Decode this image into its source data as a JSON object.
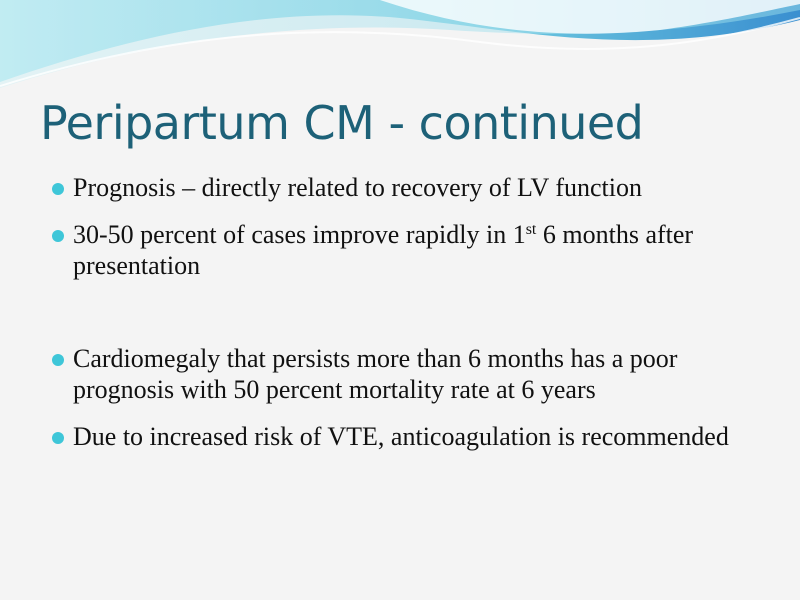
{
  "title": "Peripartum CM - continued",
  "bullets": [
    {
      "text": "Prognosis – directly related to recovery of LV function"
    },
    {
      "text": "30-50 percent of cases improve rapidly in 1",
      "superscript": "st",
      "text_after": " 6 months after presentation"
    },
    {
      "text": "Cardiomegaly that persists more than 6 months has a poor prognosis with 50 percent mortality rate at 6 years"
    },
    {
      "text": "Due to increased risk of VTE, anticoagulation is recommended"
    }
  ]
}
